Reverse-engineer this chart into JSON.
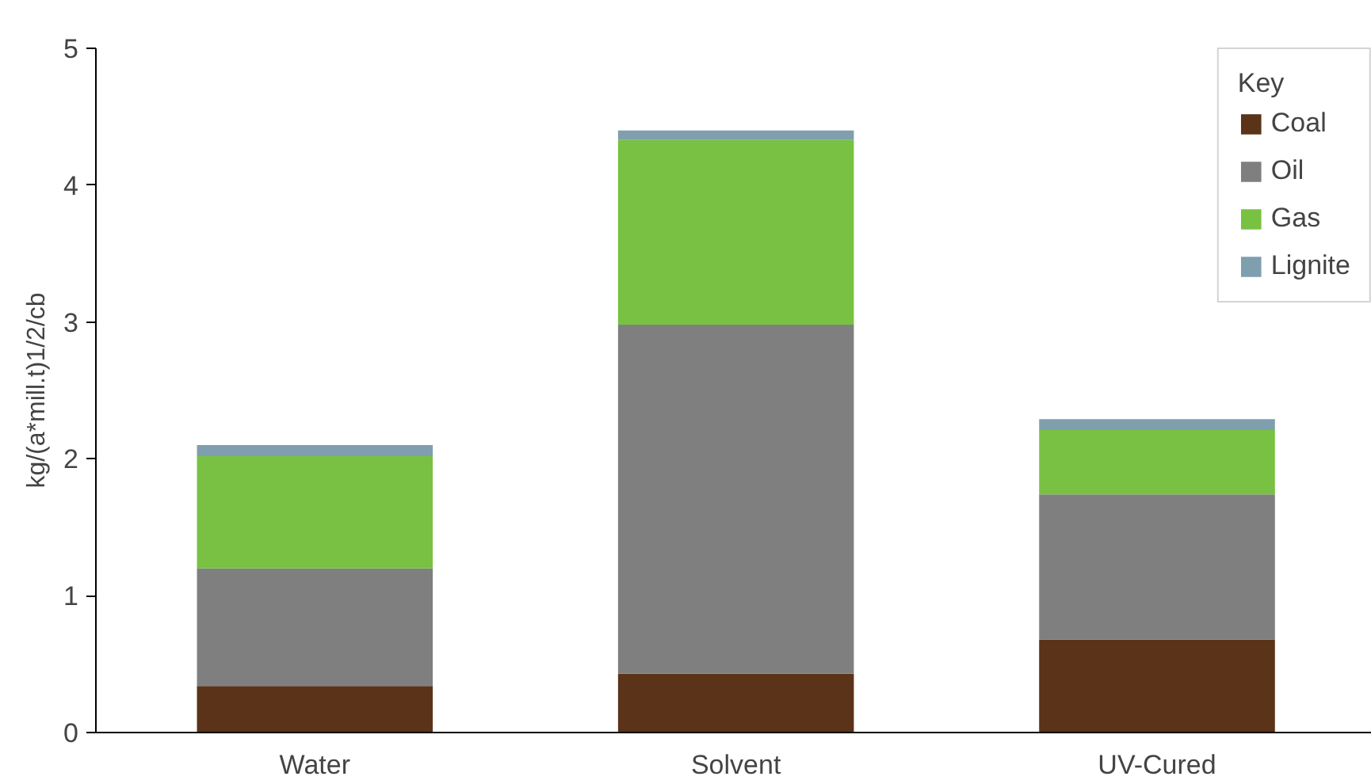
{
  "chart_data": {
    "type": "bar",
    "stacked": true,
    "ylabel": "kg/(a*mill.t)1/2/cb",
    "legend_title": "Key",
    "legend": "top right",
    "grid": false,
    "categories": [
      "Water",
      "Solvent",
      "UV-Cured"
    ],
    "ylim": [
      0,
      5
    ],
    "yticks": [
      0,
      1,
      2,
      3,
      4,
      5
    ],
    "series": [
      {
        "name": "Coal",
        "color": "#5a3318",
        "values": [
          0.34,
          0.43,
          0.68
        ]
      },
      {
        "name": "Oil",
        "color": "#807f80",
        "values": [
          0.86,
          2.55,
          1.06
        ]
      },
      {
        "name": "Gas",
        "color": "#78c142",
        "values": [
          0.82,
          1.35,
          0.47
        ]
      },
      {
        "name": "Lignite",
        "color": "#7f9fae",
        "values": [
          0.08,
          0.07,
          0.08
        ]
      }
    ]
  }
}
